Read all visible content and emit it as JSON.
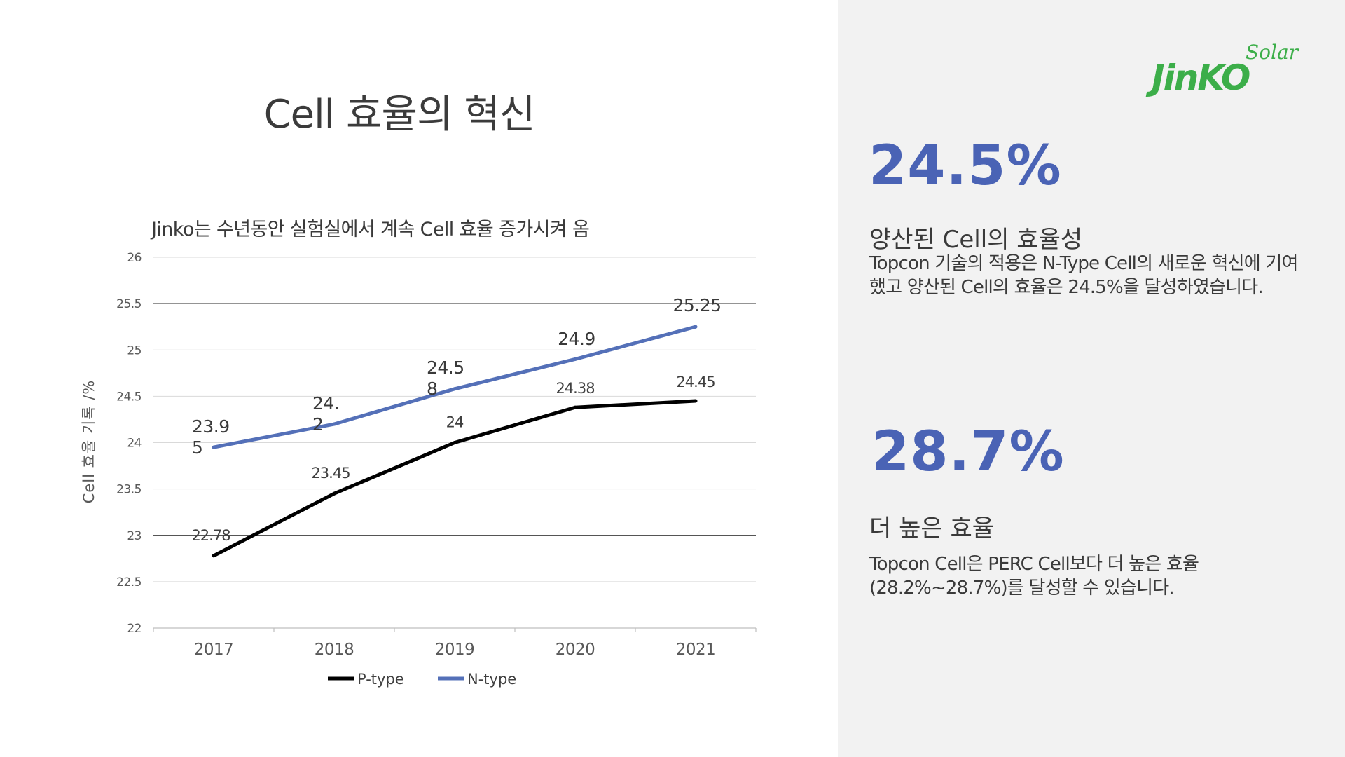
{
  "page_title": "Cell 효율의 혁신",
  "logo": {
    "main": "JinKO",
    "sub": "Solar"
  },
  "stats": [
    {
      "value": "24.5%",
      "heading": "양산된 Cell의 효율성",
      "desc_lines": [
        "Topcon 기술의 적용은 N-Type Cell의 새로운 혁신에 기여",
        "했고 양산된 Cell의 효율은 24.5%을 달성하였습니다."
      ]
    },
    {
      "value": "28.7%",
      "heading": "더 높은 효율",
      "desc_lines": [
        "Topcon Cell은 PERC Cell보다 더 높은 효율",
        "(28.2%~28.7%)를 달성할 수 있습니다."
      ]
    }
  ],
  "colors": {
    "accent": "#4a63b5",
    "ptype": "#000000",
    "ntype": "#5470b8",
    "brand": "#3cae49",
    "panel": "#f2f2f2"
  },
  "chart_data": {
    "type": "line",
    "title": "Jinko는 수년동안 실험실에서 계속 Cell 효율 증가시켜 옴",
    "ylabel": "Cell 효율 기록 /%",
    "xlabel": "",
    "categories": [
      "2017",
      "2018",
      "2019",
      "2020",
      "2021"
    ],
    "ylim": [
      22,
      26
    ],
    "yticks": [
      "22",
      "22.5",
      "23",
      "23.5",
      "24",
      "24.5",
      "25",
      "25.5",
      "26"
    ],
    "grid": true,
    "legend_position": "bottom",
    "series": [
      {
        "name": "P-type",
        "color": "#000000",
        "values": [
          22.78,
          23.45,
          24,
          24.38,
          24.45
        ],
        "labels": [
          [
            "22.78"
          ],
          [
            "23.45"
          ],
          [
            "24"
          ],
          [
            "24.38"
          ],
          [
            "24.45"
          ]
        ]
      },
      {
        "name": "N-type",
        "color": "#5470b8",
        "values": [
          23.95,
          24.2,
          24.58,
          24.9,
          25.25
        ],
        "labels": [
          [
            "23.9",
            "5"
          ],
          [
            "24.",
            "2"
          ],
          [
            "24.5",
            "8"
          ],
          [
            "24.9"
          ],
          [
            "25.25"
          ]
        ]
      }
    ]
  }
}
